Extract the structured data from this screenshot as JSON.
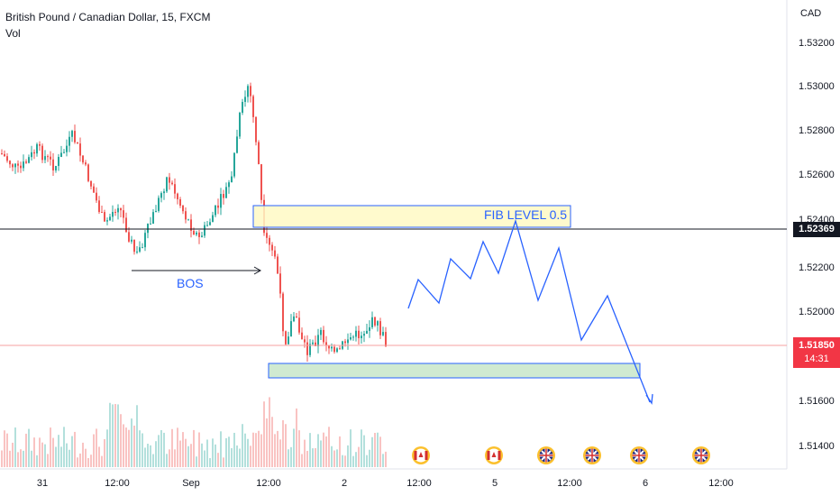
{
  "header": {
    "title": "British Pound / Canadian Dollar, 15, FXCM",
    "volume_label": "Vol",
    "currency": "CAD"
  },
  "price_axis": {
    "ticks": [
      "1.53200",
      "1.53000",
      "1.52800",
      "1.52600",
      "1.52400",
      "1.52200",
      "1.52000",
      "1.51800",
      "1.51600",
      "1.51400"
    ]
  },
  "time_axis": {
    "ticks": [
      "31",
      "12:00",
      "Sep",
      "12:00",
      "2",
      "12:00",
      "5",
      "12:00",
      "6",
      "12:00"
    ]
  },
  "badges": {
    "level_line": "1.52369",
    "current_price": "1.51850",
    "countdown": "14:31"
  },
  "annotations": {
    "bos": "BOS",
    "fib": "FIB LEVEL 0.5"
  },
  "colors": {
    "up": "#26a69a",
    "down": "#ef5350",
    "annotation": "#2962ff",
    "level_line": "#131722",
    "fib_zone": "#fff9c4",
    "demand_zone": "#c8e6c9",
    "price_badge": "#f23645"
  },
  "event_icons": [
    "canada-flag-icon",
    "canada-flag-icon",
    "uk-flag-icon",
    "uk-flag-icon",
    "uk-flag-icon",
    "uk-flag-icon"
  ]
}
